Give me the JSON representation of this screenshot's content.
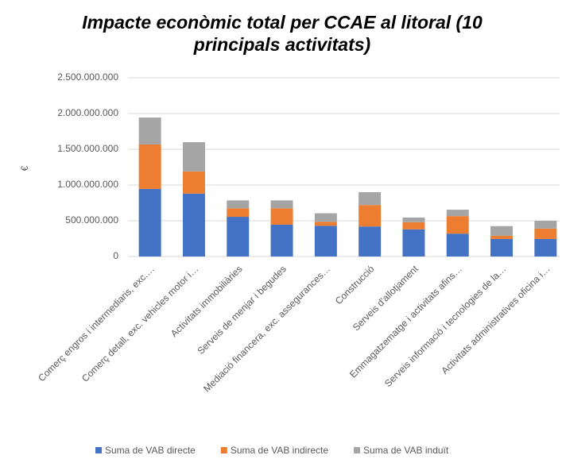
{
  "chart_data": {
    "type": "stacked_bar",
    "title": "Impacte econòmic total per CCAE al litoral (10 principals activitats)",
    "ylabel": "€",
    "categories": [
      "Comerç engros i intermediaris, exc.…",
      "Comerç detall, exc. vehicles motor i…",
      "Activitats immobiliàries",
      "Serveis de menjar i begudes",
      "Mediació financera, exc. assegurances…",
      "Construcció",
      "Serveis d'allotjament",
      "Emmagatzematge i activitats afins…",
      "Serveis informació i tecnologies de la…",
      "Activitats administratives oficina i…"
    ],
    "series": [
      {
        "name": "Suma de VAB directe",
        "color": "#4472c4",
        "values": [
          945000000,
          880000000,
          555000000,
          445000000,
          430000000,
          420000000,
          380000000,
          320000000,
          245000000,
          245000000
        ]
      },
      {
        "name": "Suma de VAB indirecte",
        "color": "#ed7d31",
        "values": [
          622000000,
          310000000,
          120000000,
          230000000,
          55000000,
          300000000,
          100000000,
          245000000,
          45000000,
          145000000
        ]
      },
      {
        "name": "Suma de VAB induït",
        "color": "#a5a5a5",
        "values": [
          377000000,
          410000000,
          110000000,
          110000000,
          120000000,
          180000000,
          65000000,
          90000000,
          135000000,
          110000000
        ]
      }
    ],
    "ylim": [
      0,
      2500000000
    ],
    "yticks": [
      0,
      {
        "value": 500000000,
        "label": "500.000.000"
      },
      {
        "value": 1000000000,
        "label": "1.000.000.000"
      },
      {
        "value": 1500000000,
        "label": "1.500.000.000"
      },
      {
        "value": 2000000000,
        "label": "2.000.000.000"
      },
      {
        "value": 2500000000,
        "label": "2.500.000.000"
      }
    ],
    "grid": true,
    "legend": "bottom"
  }
}
